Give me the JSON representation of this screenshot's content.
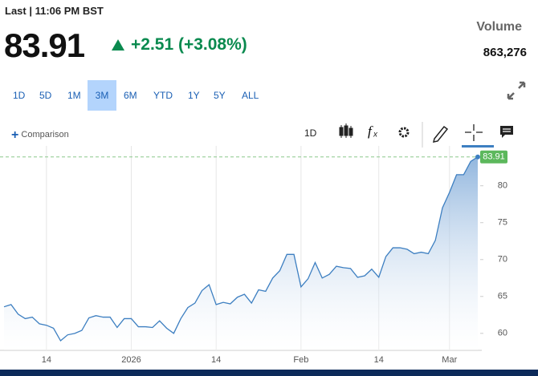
{
  "header": {
    "last": "Last | 11:06 PM BST",
    "price": "83.91",
    "change": "+2.51 (+3.08%)",
    "volume_label": "Volume",
    "volume": "863,276"
  },
  "ranges": {
    "items": [
      "1D",
      "5D",
      "1M",
      "3M",
      "6M",
      "YTD",
      "1Y",
      "5Y",
      "ALL"
    ],
    "selected": 3
  },
  "toolbar": {
    "comparison": "Comparison",
    "interval": "1D"
  },
  "chart_data": {
    "type": "area",
    "color": "#3d7fc1",
    "categories": [
      null,
      null,
      null,
      null,
      null,
      null,
      "14",
      null,
      null,
      null,
      null,
      null,
      null,
      null,
      null,
      null,
      null,
      null,
      "2026",
      null,
      null,
      null,
      null,
      null,
      null,
      null,
      null,
      null,
      null,
      null,
      "14",
      null,
      null,
      null,
      null,
      null,
      null,
      null,
      null,
      null,
      null,
      null,
      "Feb",
      null,
      null,
      null,
      null,
      null,
      null,
      null,
      null,
      null,
      null,
      "14",
      null,
      null,
      null,
      null,
      null,
      null,
      null,
      null,
      null,
      "Mar",
      null,
      null,
      null,
      null
    ],
    "values": [
      63.6,
      63.9,
      62.6,
      62.0,
      62.2,
      61.3,
      61.1,
      60.7,
      59.0,
      59.8,
      60.0,
      60.4,
      62.1,
      62.4,
      62.2,
      62.2,
      60.8,
      62.0,
      62.0,
      60.9,
      60.9,
      60.8,
      61.7,
      60.7,
      60.0,
      62.0,
      63.5,
      64.1,
      65.8,
      66.6,
      63.9,
      64.2,
      64.0,
      64.9,
      65.3,
      64.1,
      65.9,
      65.7,
      67.5,
      68.5,
      70.7,
      70.7,
      66.3,
      67.4,
      69.6,
      67.5,
      68.0,
      69.1,
      68.9,
      68.8,
      67.6,
      67.8,
      68.7,
      67.6,
      70.4,
      71.6,
      71.6,
      71.4,
      70.8,
      71.0,
      70.8,
      72.6,
      77.0,
      79.1,
      81.5,
      81.5,
      83.3,
      83.91
    ],
    "ylim": [
      57.7,
      85.4
    ],
    "yticks": [
      60,
      65,
      70,
      75,
      80
    ],
    "grid": true
  }
}
